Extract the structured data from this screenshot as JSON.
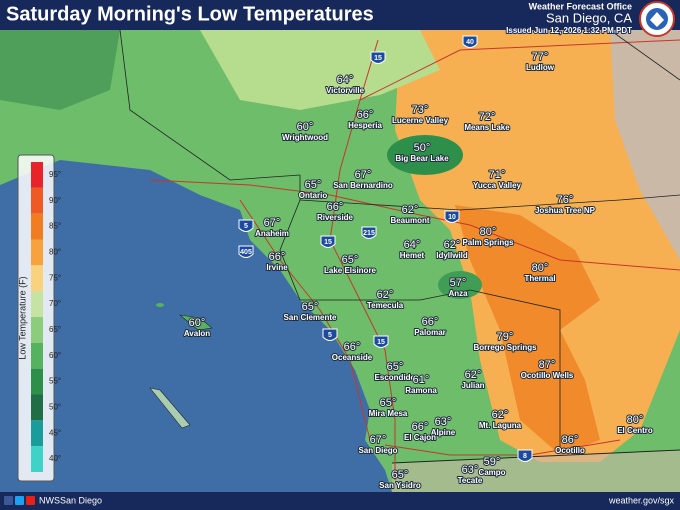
{
  "header": {
    "title": "Saturday Morning's Low Temperatures",
    "office": "Weather Forecast Office",
    "location": "San Diego, CA",
    "issued": "Issued Jun 12, 2026 1:32 PM PDT"
  },
  "legend": {
    "label": "Low Temperature (F)",
    "bins": [
      {
        "label": "95°",
        "color": "#e8242b"
      },
      {
        "label": "90°",
        "color": "#ee5a24"
      },
      {
        "label": "85°",
        "color": "#f17d22"
      },
      {
        "label": "80°",
        "color": "#f6a23d"
      },
      {
        "label": "75°",
        "color": "#f8d27e"
      },
      {
        "label": "70°",
        "color": "#c7e3a4"
      },
      {
        "label": "65°",
        "color": "#8ccc7d"
      },
      {
        "label": "60°",
        "color": "#56b25e"
      },
      {
        "label": "55°",
        "color": "#2e8f4b"
      },
      {
        "label": "50°",
        "color": "#1f6e46"
      },
      {
        "label": "45°",
        "color": "#1a9d9a"
      },
      {
        "label": "40°",
        "color": "#3fd3c8"
      }
    ]
  },
  "cities": [
    {
      "name": "Ludlow",
      "temp": "77°"
    },
    {
      "name": "Victorville",
      "temp": "64°"
    },
    {
      "name": "Lucerne Valley",
      "temp": "73°"
    },
    {
      "name": "Means Lake",
      "temp": "72°"
    },
    {
      "name": "Hesperia",
      "temp": "66°"
    },
    {
      "name": "Wrightwood",
      "temp": "60°"
    },
    {
      "name": "Big Bear Lake",
      "temp": "50°"
    },
    {
      "name": "Yucca Valley",
      "temp": "71°"
    },
    {
      "name": "San Bernardino",
      "temp": "67°"
    },
    {
      "name": "Ontario",
      "temp": "65°"
    },
    {
      "name": "Joshua Tree NP",
      "temp": "76°"
    },
    {
      "name": "Riverside",
      "temp": "66°"
    },
    {
      "name": "Beaumont",
      "temp": "62°"
    },
    {
      "name": "Anaheim",
      "temp": "67°"
    },
    {
      "name": "Palm Springs",
      "temp": "80°"
    },
    {
      "name": "Hemet",
      "temp": "64°"
    },
    {
      "name": "Idyllwild",
      "temp": "62°"
    },
    {
      "name": "Irvine",
      "temp": "66°"
    },
    {
      "name": "Lake Elsinore",
      "temp": "65°"
    },
    {
      "name": "Thermal",
      "temp": "80°"
    },
    {
      "name": "Anza",
      "temp": "57°"
    },
    {
      "name": "Temecula",
      "temp": "62°"
    },
    {
      "name": "San Clemente",
      "temp": "65°"
    },
    {
      "name": "Avalon",
      "temp": "60°"
    },
    {
      "name": "Palomar",
      "temp": "66°"
    },
    {
      "name": "Borrego Springs",
      "temp": "79°"
    },
    {
      "name": "Oceanside",
      "temp": "66°"
    },
    {
      "name": "Ocotillo Wells",
      "temp": "87°"
    },
    {
      "name": "Escondido",
      "temp": "65°"
    },
    {
      "name": "Ramona",
      "temp": "61°"
    },
    {
      "name": "Julian",
      "temp": "62°"
    },
    {
      "name": "Mira Mesa",
      "temp": "65°"
    },
    {
      "name": "Alpine",
      "temp": "63°"
    },
    {
      "name": "Mt. Laguna",
      "temp": "62°"
    },
    {
      "name": "El Cajon",
      "temp": "66°"
    },
    {
      "name": "El Centro",
      "temp": "80°"
    },
    {
      "name": "San Diego",
      "temp": "67°"
    },
    {
      "name": "Ocotillo",
      "temp": "86°"
    },
    {
      "name": "Campo",
      "temp": "59°"
    },
    {
      "name": "Tecate",
      "temp": "63°"
    },
    {
      "name": "San Ysidro",
      "temp": "65°"
    }
  ],
  "highways": [
    "15",
    "40",
    "10",
    "5",
    "405",
    "215",
    "15",
    "15",
    "5",
    "8"
  ],
  "footer": {
    "account": "NWSSan Diego",
    "website": "weather.gov/sgx"
  }
}
